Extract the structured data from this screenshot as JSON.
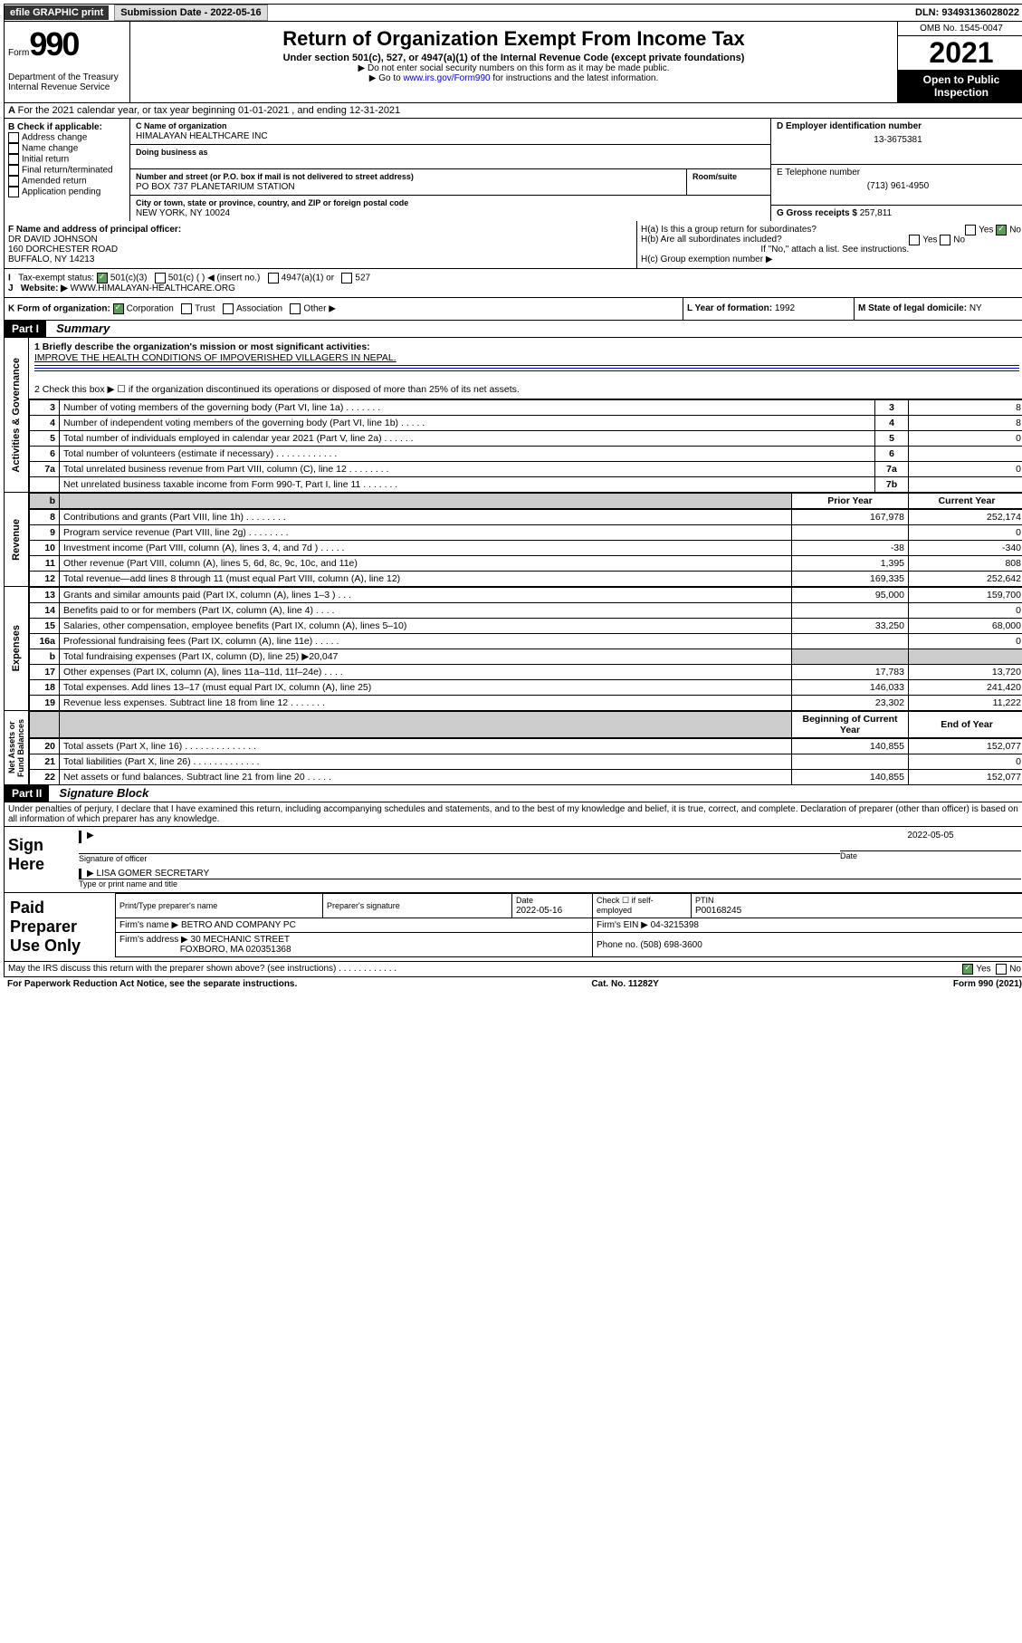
{
  "topbar": {
    "efile": "efile GRAPHIC print",
    "submission_label": "Submission Date - 2022-05-16",
    "dln_label": "DLN: 93493136028022"
  },
  "header": {
    "form_prefix": "Form",
    "form_number": "990",
    "title": "Return of Organization Exempt From Income Tax",
    "subtitle": "Under section 501(c), 527, or 4947(a)(1) of the Internal Revenue Code (except private foundations)",
    "note1": "▶ Do not enter social security numbers on this form as it may be made public.",
    "note2_pre": "▶ Go to ",
    "note2_link": "www.irs.gov/Form990",
    "note2_post": " for instructions and the latest information.",
    "dept": "Department of the Treasury\nInternal Revenue Service",
    "omb": "OMB No. 1545-0047",
    "year": "2021",
    "open": "Open to Public Inspection"
  },
  "line_a": "For the 2021 calendar year, or tax year beginning 01-01-2021   , and ending 12-31-2021",
  "box_b": {
    "label": "B Check if applicable:",
    "opts": [
      "Address change",
      "Name change",
      "Initial return",
      "Final return/terminated",
      "Amended return",
      "Application pending"
    ]
  },
  "box_c": {
    "name_label": "C Name of organization",
    "name": "HIMALAYAN HEALTHCARE INC",
    "dba_label": "Doing business as",
    "addr_label": "Number and street (or P.O. box if mail is not delivered to street address)",
    "room_label": "Room/suite",
    "addr": "PO BOX 737 PLANETARIUM STATION",
    "city_label": "City or town, state or province, country, and ZIP or foreign postal code",
    "city": "NEW YORK, NY  10024"
  },
  "box_d": {
    "label": "D Employer identification number",
    "value": "13-3675381"
  },
  "box_e": {
    "label": "E Telephone number",
    "value": "(713) 961-4950"
  },
  "box_g": {
    "label": "G Gross receipts $",
    "value": "257,811"
  },
  "box_f": {
    "label": "F  Name and address of principal officer:",
    "lines": [
      "DR DAVID JOHNSON",
      "160 DORCHESTER ROAD",
      "BUFFALO, NY  14213"
    ]
  },
  "box_h": {
    "a": "H(a)  Is this a group return for subordinates?",
    "b": "H(b)  Are all subordinates included?",
    "note": "If \"No,\" attach a list. See instructions.",
    "c": "H(c)  Group exemption number ▶",
    "yes": "Yes",
    "no": "No"
  },
  "box_i": {
    "label": "Tax-exempt status:",
    "opts": [
      "501(c)(3)",
      "501(c) (  ) ◀ (insert no.)",
      "4947(a)(1) or",
      "527"
    ]
  },
  "box_j": {
    "label": "Website: ▶",
    "value": "WWW.HIMALAYAN-HEALTHCARE.ORG"
  },
  "box_k": {
    "label": "K Form of organization:",
    "opts": [
      "Corporation",
      "Trust",
      "Association",
      "Other ▶"
    ]
  },
  "box_l": {
    "label": "L Year of formation:",
    "value": "1992"
  },
  "box_m": {
    "label": "M State of legal domicile:",
    "value": "NY"
  },
  "part1": {
    "header": "Part I",
    "title": "Summary",
    "q1_label": "1  Briefly describe the organization's mission or most significant activities:",
    "q1_text": "IMPROVE THE HEALTH CONDITIONS OF IMPOVERISHED VILLAGERS IN NEPAL.",
    "q2": "2   Check this box ▶ ☐  if the organization discontinued its operations or disposed of more than 25% of its net assets.",
    "sections": {
      "gov": "Activities & Governance",
      "rev": "Revenue",
      "exp": "Expenses",
      "net": "Net Assets or Fund Balances"
    },
    "col_prior": "Prior Year",
    "col_current": "Current Year",
    "col_begin": "Beginning of Current Year",
    "col_end": "End of Year",
    "rows_gov": [
      {
        "n": "3",
        "t": "Number of voting members of the governing body (Part VI, line 1a)  .   .   .   .   .   .   .",
        "b": "3",
        "v": "8"
      },
      {
        "n": "4",
        "t": "Number of independent voting members of the governing body (Part VI, line 1b)  .   .   .   .   .",
        "b": "4",
        "v": "8"
      },
      {
        "n": "5",
        "t": "Total number of individuals employed in calendar year 2021 (Part V, line 2a)  .   .   .   .   .   .",
        "b": "5",
        "v": "0"
      },
      {
        "n": "6",
        "t": "Total number of volunteers (estimate if necessary)  .   .   .   .   .   .   .   .   .   .   .   .",
        "b": "6",
        "v": ""
      },
      {
        "n": "7a",
        "t": "Total unrelated business revenue from Part VIII, column (C), line 12  .   .   .   .   .   .   .   .",
        "b": "7a",
        "v": "0"
      },
      {
        "n": "",
        "t": "Net unrelated business taxable income from Form 990-T, Part I, line 11  .   .   .   .   .   .   .",
        "b": "7b",
        "v": ""
      }
    ],
    "rows_rev": [
      {
        "n": "8",
        "t": "Contributions and grants (Part VIII, line 1h)  .   .   .   .   .   .   .   .",
        "p": "167,978",
        "c": "252,174"
      },
      {
        "n": "9",
        "t": "Program service revenue (Part VIII, line 2g)  .   .   .   .   .   .   .   .",
        "p": "",
        "c": "0"
      },
      {
        "n": "10",
        "t": "Investment income (Part VIII, column (A), lines 3, 4, and 7d )  .   .   .   .   .",
        "p": "-38",
        "c": "-340"
      },
      {
        "n": "11",
        "t": "Other revenue (Part VIII, column (A), lines 5, 6d, 8c, 9c, 10c, and 11e)",
        "p": "1,395",
        "c": "808"
      },
      {
        "n": "12",
        "t": "Total revenue—add lines 8 through 11 (must equal Part VIII, column (A), line 12)",
        "p": "169,335",
        "c": "252,642"
      }
    ],
    "rows_exp": [
      {
        "n": "13",
        "t": "Grants and similar amounts paid (Part IX, column (A), lines 1–3 )  .   .   .",
        "p": "95,000",
        "c": "159,700"
      },
      {
        "n": "14",
        "t": "Benefits paid to or for members (Part IX, column (A), line 4)  .   .   .   .",
        "p": "",
        "c": "0"
      },
      {
        "n": "15",
        "t": "Salaries, other compensation, employee benefits (Part IX, column (A), lines 5–10)",
        "p": "33,250",
        "c": "68,000"
      },
      {
        "n": "16a",
        "t": "Professional fundraising fees (Part IX, column (A), line 11e)  .   .   .   .   .",
        "p": "",
        "c": "0"
      },
      {
        "n": "b",
        "t": "Total fundraising expenses (Part IX, column (D), line 25) ▶20,047",
        "p": "__SHADE__",
        "c": "__SHADE__"
      },
      {
        "n": "17",
        "t": "Other expenses (Part IX, column (A), lines 11a–11d, 11f–24e)  .   .   .   .",
        "p": "17,783",
        "c": "13,720"
      },
      {
        "n": "18",
        "t": "Total expenses. Add lines 13–17 (must equal Part IX, column (A), line 25)",
        "p": "146,033",
        "c": "241,420"
      },
      {
        "n": "19",
        "t": "Revenue less expenses. Subtract line 18 from line 12  .   .   .   .   .   .   .",
        "p": "23,302",
        "c": "11,222"
      }
    ],
    "rows_net": [
      {
        "n": "20",
        "t": "Total assets (Part X, line 16)  .   .   .   .   .   .   .   .   .   .   .   .   .   .",
        "p": "140,855",
        "c": "152,077"
      },
      {
        "n": "21",
        "t": "Total liabilities (Part X, line 26)  .   .   .   .   .   .   .   .   .   .   .   .   .",
        "p": "",
        "c": "0"
      },
      {
        "n": "22",
        "t": "Net assets or fund balances. Subtract line 21 from line 20  .   .   .   .   .",
        "p": "140,855",
        "c": "152,077"
      }
    ]
  },
  "part2": {
    "header": "Part II",
    "title": "Signature Block",
    "penalty": "Under penalties of perjury, I declare that I have examined this return, including accompanying schedules and statements, and to the best of my knowledge and belief, it is true, correct, and complete. Declaration of preparer (other than officer) is based on all information of which preparer has any knowledge.",
    "sign_here": "Sign Here",
    "sig_officer": "Signature of officer",
    "sig_date": "2022-05-05",
    "date_label": "Date",
    "sig_name": "LISA GOMER  SECRETARY",
    "sig_name_label": "Type or print name and title"
  },
  "preparer": {
    "label": "Paid Preparer Use Only",
    "h1": "Print/Type preparer's name",
    "h2": "Preparer's signature",
    "h3": "Date",
    "h3v": "2022-05-16",
    "h4": "Check ☐ if self-employed",
    "h5": "PTIN",
    "h5v": "P00168245",
    "firm_label": "Firm's name    ▶",
    "firm": "BETRO AND COMPANY PC",
    "ein_label": "Firm's EIN ▶",
    "ein": "04-3215398",
    "addr_label": "Firm's address ▶",
    "addr1": "30 MECHANIC STREET",
    "addr2": "FOXBORO, MA  020351368",
    "phone_label": "Phone no.",
    "phone": "(508) 698-3600"
  },
  "footer": {
    "discuss": "May the IRS discuss this return with the preparer shown above? (see instructions)  .   .   .   .   .   .   .   .   .   .   .   .",
    "yes": "Yes",
    "no": "No",
    "paperwork": "For Paperwork Reduction Act Notice, see the separate instructions.",
    "cat": "Cat. No. 11282Y",
    "form": "Form 990 (2021)"
  }
}
